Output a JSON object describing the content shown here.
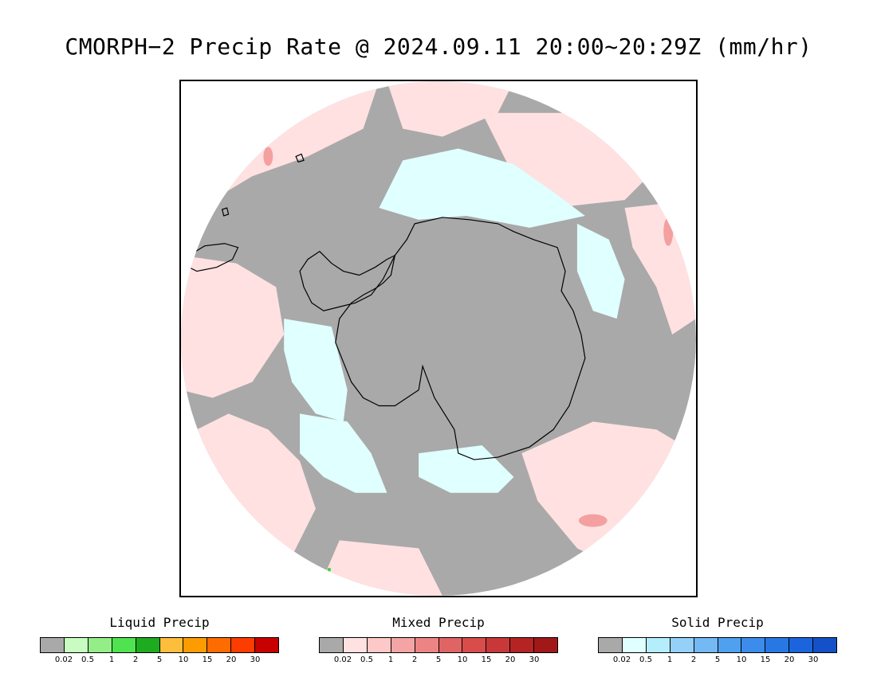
{
  "title": "CMORPH−2 Precip Rate @ 2024.09.11 20:00~20:29Z (mm/hr)",
  "map": {
    "colors": {
      "no_precip_gray": "#a9a9a9",
      "light_mixed_pink": "#ffe1e1",
      "mixed_pink_moderate": "#f4a0a0",
      "light_solid_cyan": "#e0ffff",
      "liquid_green": "#3bd43b",
      "coastline": "#000000"
    }
  },
  "legends": [
    {
      "title": "Liquid Precip",
      "colors": [
        "#a9a9a9",
        "#c8fcc0",
        "#94ee88",
        "#4fe44f",
        "#1fab1f",
        "#fcbe3c",
        "#fc9c00",
        "#fc6c00",
        "#fc3c00",
        "#c80000"
      ],
      "ticks": [
        "0.02",
        "0.5",
        "1",
        "2",
        "5",
        "10",
        "15",
        "20",
        "30"
      ]
    },
    {
      "title": "Mixed Precip",
      "colors": [
        "#a9a9a9",
        "#ffe1e1",
        "#fcc8c8",
        "#f4a4a4",
        "#ec8484",
        "#e06464",
        "#d84c4c",
        "#c83838",
        "#b42424",
        "#a01818"
      ],
      "ticks": [
        "0.02",
        "0.5",
        "1",
        "2",
        "5",
        "10",
        "15",
        "20",
        "30"
      ]
    },
    {
      "title": "Solid Precip",
      "colors": [
        "#a9a9a9",
        "#e0ffff",
        "#b4eefc",
        "#94d0f8",
        "#74b8f4",
        "#50a0f0",
        "#3c8cec",
        "#2878e4",
        "#1c64dc",
        "#1450c8"
      ],
      "ticks": [
        "0.02",
        "0.5",
        "1",
        "2",
        "5",
        "10",
        "15",
        "20",
        "30"
      ]
    }
  ]
}
